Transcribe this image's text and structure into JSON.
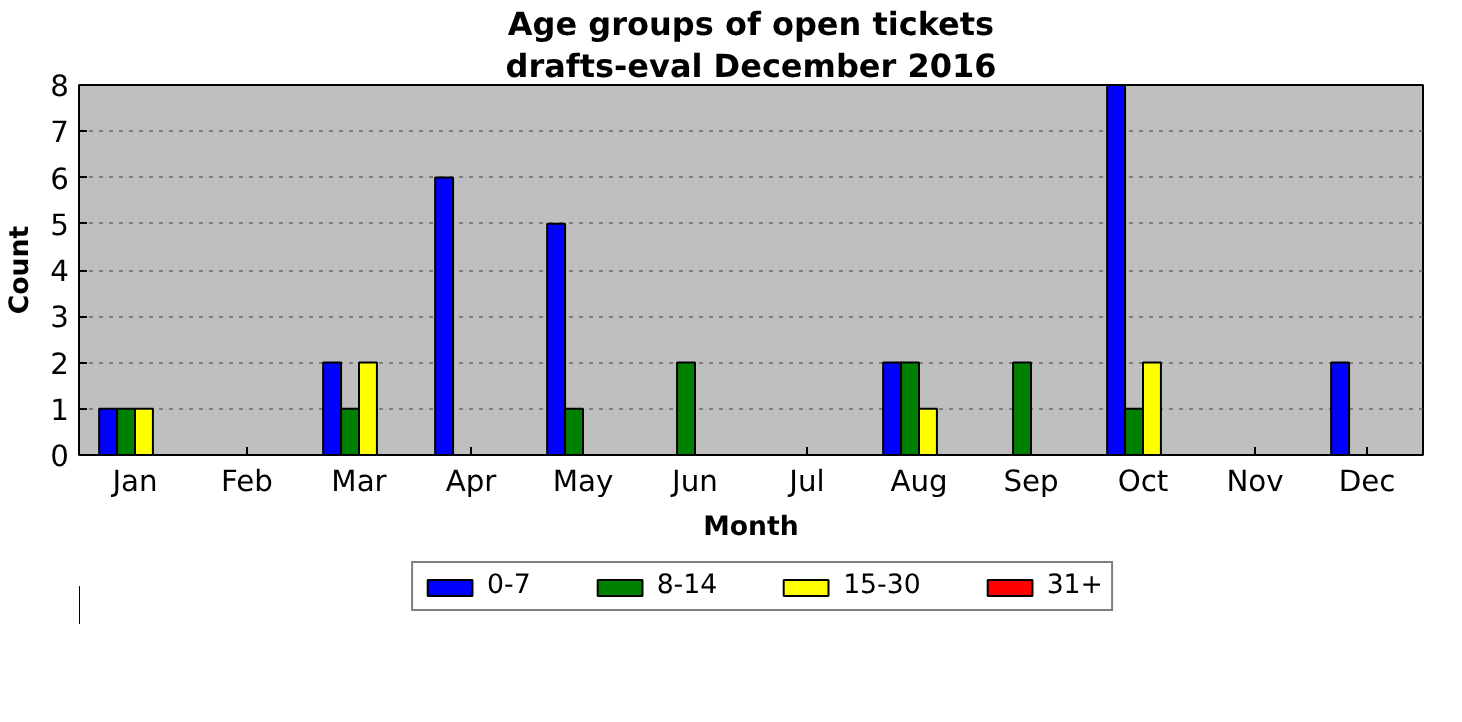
{
  "chart_data": {
    "type": "bar",
    "title": "Age groups of open tickets",
    "subtitle": "drafts-eval December 2016",
    "xlabel": "Month",
    "ylabel": "Count",
    "categories": [
      "Jan",
      "Feb",
      "Mar",
      "Apr",
      "May",
      "Jun",
      "Jul",
      "Aug",
      "Sep",
      "Oct",
      "Nov",
      "Dec"
    ],
    "series": [
      {
        "name": "0-7",
        "color": "#0000ff",
        "values": [
          1,
          0,
          2,
          6,
          5,
          0,
          0,
          2,
          0,
          8,
          0,
          2
        ]
      },
      {
        "name": "8-14",
        "color": "#008000",
        "values": [
          1,
          0,
          1,
          0,
          1,
          2,
          0,
          2,
          2,
          1,
          0,
          0
        ]
      },
      {
        "name": "15-30",
        "color": "#ffff00",
        "values": [
          1,
          0,
          2,
          0,
          0,
          0,
          0,
          1,
          0,
          2,
          0,
          0
        ]
      },
      {
        "name": "31+",
        "color": "#ff0000",
        "values": [
          0,
          0,
          0,
          0,
          0,
          0,
          0,
          0,
          0,
          0,
          0,
          0
        ]
      }
    ],
    "ylim": [
      0,
      8
    ],
    "yticks": [
      0,
      1,
      2,
      3,
      4,
      5,
      6,
      7,
      8
    ],
    "grid": "y",
    "legend": "bottom"
  }
}
